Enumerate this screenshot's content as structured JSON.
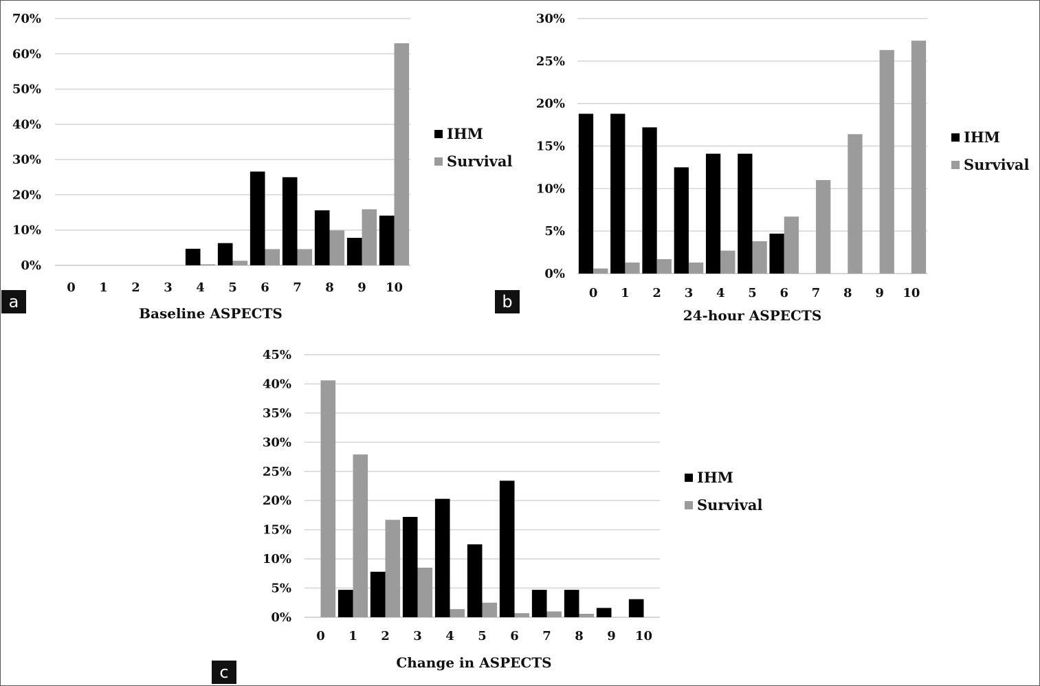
{
  "colors": {
    "ihm": "#000000",
    "survival": "#9b9b9b",
    "grid": "#d4d4d4",
    "axis": "#c8c8c8"
  },
  "chart_data": [
    {
      "id": "a",
      "type": "bar",
      "panel_label": "a",
      "xlabel": "Baseline ASPECTS",
      "ylabel": "",
      "categories": [
        "0",
        "1",
        "2",
        "3",
        "4",
        "5",
        "6",
        "7",
        "8",
        "9",
        "10"
      ],
      "ylim": [
        0,
        70
      ],
      "yticks": [
        "0%",
        "10%",
        "20%",
        "30%",
        "40%",
        "50%",
        "60%",
        "70%"
      ],
      "legend_position": "right",
      "series": [
        {
          "name": "IHM",
          "values": [
            0,
            0,
            0,
            0,
            4.7,
            6.3,
            26.6,
            25,
            15.6,
            7.8,
            14.1
          ]
        },
        {
          "name": "Survival",
          "values": [
            0,
            0,
            0,
            0,
            0.3,
            1.3,
            4.6,
            4.6,
            9.9,
            15.9,
            63
          ]
        }
      ]
    },
    {
      "id": "b",
      "type": "bar",
      "panel_label": "b",
      "xlabel": "24-hour  ASPECTS",
      "ylabel": "",
      "categories": [
        "0",
        "1",
        "2",
        "3",
        "4",
        "5",
        "6",
        "7",
        "8",
        "9",
        "10"
      ],
      "ylim": [
        0,
        30
      ],
      "yticks": [
        "0%",
        "5%",
        "10%",
        "15%",
        "20%",
        "25%",
        "30%"
      ],
      "legend_position": "right",
      "series": [
        {
          "name": "IHM",
          "values": [
            18.8,
            18.8,
            17.2,
            12.5,
            14.1,
            14.1,
            4.7,
            0,
            0,
            0,
            0
          ]
        },
        {
          "name": "Survival",
          "values": [
            0.6,
            1.3,
            1.7,
            1.3,
            2.7,
            3.8,
            6.7,
            11,
            16.4,
            26.3,
            27.4
          ]
        }
      ]
    },
    {
      "id": "c",
      "type": "bar",
      "panel_label": "c",
      "xlabel": "Change in ASPECTS",
      "ylabel": "",
      "categories": [
        "0",
        "1",
        "2",
        "3",
        "4",
        "5",
        "6",
        "7",
        "8",
        "9",
        "10"
      ],
      "ylim": [
        0,
        45
      ],
      "yticks": [
        "0%",
        "5%",
        "10%",
        "15%",
        "20%",
        "25%",
        "30%",
        "35%",
        "40%",
        "45%"
      ],
      "legend_position": "right",
      "series": [
        {
          "name": "IHM",
          "values": [
            0,
            4.7,
            7.8,
            17.2,
            20.3,
            12.5,
            23.4,
            4.7,
            4.7,
            1.6,
            3.1
          ]
        },
        {
          "name": "Survival",
          "values": [
            40.6,
            27.9,
            16.7,
            8.5,
            1.4,
            2.5,
            0.7,
            1,
            0.6,
            0,
            0
          ]
        }
      ]
    }
  ]
}
